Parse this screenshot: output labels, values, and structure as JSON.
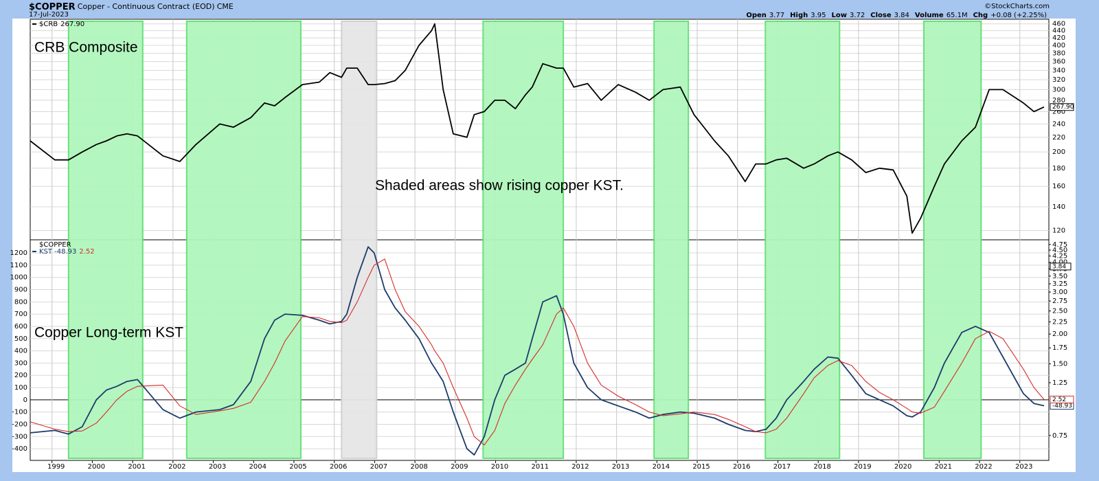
{
  "header": {
    "symbol": "$COPPER",
    "description": "Copper - Continuous Contract (EOD)",
    "exchange": "CME",
    "date": "17-Jul-2023",
    "copyright": "©StockCharts.com",
    "quote": [
      {
        "label": "Open",
        "value": "3.77"
      },
      {
        "label": "High",
        "value": "3.95"
      },
      {
        "label": "Low",
        "value": "3.72"
      },
      {
        "label": "Close",
        "value": "3.84"
      },
      {
        "label": "Volume",
        "value": "65.1M"
      },
      {
        "label": "Chg",
        "value": "+0.08 (+2.25%)"
      }
    ]
  },
  "shaded_spans": [
    {
      "x": [
        1999.41,
        2001.25
      ],
      "color": "#b1f6bc",
      "edge": "#62df74"
    },
    {
      "x": [
        2002.34,
        2005.17
      ],
      "color": "#b1f6bc",
      "edge": "#62df74"
    },
    {
      "x": [
        2006.18,
        2007.05
      ],
      "color": "#e6e6e6",
      "edge": "#cfcfcf"
    },
    {
      "x": [
        2009.69,
        2011.68
      ],
      "color": "#b1f6bc",
      "edge": "#62df74"
    },
    {
      "x": [
        2013.93,
        2014.78
      ],
      "color": "#b1f6bc",
      "edge": "#62df74"
    },
    {
      "x": [
        2016.69,
        2018.53
      ],
      "color": "#b1f6bc",
      "edge": "#62df74"
    },
    {
      "x": [
        2020.62,
        2022.04
      ],
      "color": "#b1f6bc",
      "edge": "#62df74"
    }
  ],
  "chart_data": [
    {
      "type": "line",
      "annotations": [
        "CRB Composite",
        "Shaded areas show rising copper KST."
      ],
      "xlim": [
        1998.46,
        2023.72
      ],
      "ylim": [
        113,
        474
      ],
      "yscale": "log",
      "yaxis": "right",
      "grid": true,
      "yticks": [
        120,
        140,
        160,
        180,
        200,
        220,
        240,
        260,
        280,
        300,
        320,
        340,
        360,
        380,
        400,
        420,
        440,
        460
      ],
      "x": [
        1998.46,
        1999.07,
        1999.41,
        1999.75,
        2000.1,
        2000.35,
        2000.61,
        2000.86,
        2001.12,
        2001.75,
        2002.17,
        2002.57,
        2003.16,
        2003.5,
        2003.93,
        2004.27,
        2004.52,
        2004.78,
        2005.21,
        2005.63,
        2005.89,
        2006.18,
        2006.31,
        2006.57,
        2006.84,
        2006.99,
        2007.25,
        2007.51,
        2007.76,
        2008.1,
        2008.41,
        2008.49,
        2008.7,
        2008.95,
        2009.29,
        2009.47,
        2009.72,
        2009.98,
        2010.23,
        2010.49,
        2010.74,
        2010.91,
        2011.17,
        2011.51,
        2011.68,
        2011.94,
        2012.28,
        2012.62,
        2013.04,
        2013.47,
        2013.81,
        2014.15,
        2014.58,
        2014.92,
        2015.43,
        2015.77,
        2016.19,
        2016.45,
        2016.71,
        2016.96,
        2017.22,
        2017.64,
        2017.9,
        2018.24,
        2018.49,
        2018.83,
        2019.18,
        2019.52,
        2019.86,
        2020.2,
        2020.33,
        2020.54,
        2020.88,
        2021.13,
        2021.56,
        2021.9,
        2022.24,
        2022.58,
        2023.09,
        2023.35,
        2023.6
      ],
      "series": [
        {
          "name": "$CRB",
          "color": "#000000",
          "last_value_label": "267.90",
          "values": [
            215,
            190,
            190,
            200,
            210,
            215,
            222,
            225,
            222,
            195,
            188,
            210,
            240,
            235,
            250,
            275,
            270,
            285,
            310,
            315,
            335,
            325,
            345,
            345,
            310,
            310,
            312,
            318,
            340,
            400,
            440,
            460,
            300,
            225,
            220,
            255,
            260,
            280,
            280,
            265,
            290,
            305,
            355,
            345,
            345,
            305,
            312,
            280,
            310,
            295,
            280,
            300,
            305,
            255,
            215,
            195,
            165,
            185,
            185,
            190,
            192,
            180,
            185,
            195,
            200,
            190,
            175,
            180,
            178,
            150,
            118,
            130,
            160,
            185,
            215,
            235,
            300,
            300,
            275,
            260,
            267.9
          ]
        }
      ]
    },
    {
      "type": "line",
      "title": "$COPPER",
      "annotations": [
        "Copper Long-term KST"
      ],
      "xlim": [
        1998.46,
        2023.72
      ],
      "ylim": [
        -495,
        1307
      ],
      "yaxis": "left",
      "grid": true,
      "yticks": [
        -400,
        -300,
        -200,
        -100,
        0,
        100,
        200,
        300,
        400,
        500,
        600,
        700,
        800,
        900,
        1000,
        1100,
        1200
      ],
      "y2lim": [
        0.59,
        4.97
      ],
      "y2scale": "log",
      "price_flag": 3.84,
      "y2ticks": [
        {
          "value": 0.75,
          "label": "0.75"
        },
        1.25,
        {
          "value": 1.5,
          "label": "1.50"
        },
        1.75,
        {
          "value": 2,
          "label": "2.00"
        },
        2.25,
        {
          "value": 2.5,
          "label": "2.50"
        },
        2.75,
        {
          "value": 3,
          "label": "3.00"
        },
        3.25,
        {
          "value": 3.5,
          "label": "3.50"
        },
        3.75,
        {
          "value": 4,
          "label": "4.00"
        },
        4.25,
        {
          "value": 4.5,
          "label": "4.50"
        },
        4.75
      ],
      "xticks": [
        1999,
        2000,
        2001,
        2002,
        2003,
        2004,
        2005,
        2006,
        2007,
        2008,
        2009,
        2010,
        2011,
        2012,
        2013,
        2014,
        2015,
        2016,
        2017,
        2018,
        2019,
        2020,
        2021,
        2022,
        2023
      ],
      "x": [
        1998.46,
        1999.07,
        1999.41,
        1999.75,
        2000.1,
        2000.35,
        2000.61,
        2000.86,
        2001.12,
        2001.75,
        2002.17,
        2002.57,
        2003.16,
        2003.5,
        2003.93,
        2004.27,
        2004.52,
        2004.78,
        2005.21,
        2005.63,
        2005.89,
        2006.18,
        2006.31,
        2006.57,
        2006.84,
        2006.99,
        2007.25,
        2007.51,
        2007.76,
        2008.1,
        2008.41,
        2008.49,
        2008.7,
        2008.95,
        2009.29,
        2009.47,
        2009.72,
        2009.98,
        2010.23,
        2010.49,
        2010.74,
        2010.91,
        2011.17,
        2011.51,
        2011.68,
        2011.94,
        2012.28,
        2012.62,
        2013.04,
        2013.47,
        2013.81,
        2014.15,
        2014.58,
        2014.92,
        2015.43,
        2015.77,
        2016.19,
        2016.45,
        2016.71,
        2016.96,
        2017.22,
        2017.64,
        2017.9,
        2018.24,
        2018.49,
        2018.83,
        2019.18,
        2019.52,
        2019.86,
        2020.2,
        2020.33,
        2020.54,
        2020.88,
        2021.13,
        2021.56,
        2021.9,
        2022.24,
        2022.58,
        2023.09,
        2023.35,
        2023.6
      ],
      "series": [
        {
          "name": "KST",
          "color": "#1c3a6b",
          "values": [
            -270,
            -250,
            -280,
            -220,
            0,
            80,
            110,
            150,
            165,
            -80,
            -150,
            -100,
            -80,
            -40,
            150,
            500,
            650,
            700,
            690,
            650,
            620,
            640,
            700,
            1000,
            1250,
            1200,
            900,
            750,
            650,
            500,
            300,
            260,
            150,
            -100,
            -400,
            -450,
            -300,
            0,
            200,
            250,
            300,
            500,
            800,
            850,
            700,
            300,
            100,
            0,
            -50,
            -100,
            -150,
            -120,
            -100,
            -110,
            -150,
            -200,
            -250,
            -260,
            -240,
            -150,
            0,
            150,
            250,
            350,
            340,
            200,
            50,
            0,
            -50,
            -130,
            -140,
            -100,
            100,
            300,
            550,
            600,
            550,
            350,
            50,
            -30,
            -48.93
          ]
        },
        {
          "color": "#d62b2b",
          "values": [
            -180,
            -240,
            -260,
            -255,
            -190,
            -100,
            0,
            70,
            110,
            120,
            -50,
            -120,
            -90,
            -70,
            -20,
            150,
            300,
            480,
            680,
            670,
            640,
            630,
            650,
            800,
            1000,
            1100,
            1150,
            900,
            720,
            600,
            450,
            400,
            300,
            100,
            -150,
            -300,
            -370,
            -250,
            -30,
            120,
            250,
            330,
            450,
            700,
            750,
            600,
            300,
            120,
            30,
            -40,
            -100,
            -130,
            -115,
            -100,
            -120,
            -160,
            -220,
            -260,
            -270,
            -240,
            -150,
            50,
            180,
            280,
            320,
            280,
            150,
            60,
            0,
            -70,
            -100,
            -110,
            -60,
            70,
            300,
            500,
            560,
            500,
            250,
            100,
            2.52
          ]
        }
      ]
    }
  ]
}
